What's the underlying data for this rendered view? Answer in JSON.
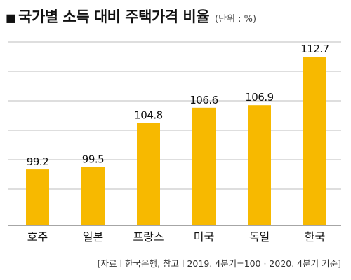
{
  "header": {
    "bullet": "■",
    "title": "국가별 소득 대비 주택가격 비율",
    "unit": "(단위 : %)"
  },
  "source": "[자료ㅣ한국은행, 참고ㅣ2019. 4분기=100 · 2020. 4분기 기준]",
  "chart_data": {
    "type": "bar",
    "title": "국가별 소득 대비 주택가격 비율",
    "unit": "(단위 : %)",
    "categories": [
      "호주",
      "일본",
      "프랑스",
      "미국",
      "독일",
      "한국"
    ],
    "values": [
      99.2,
      99.5,
      104.8,
      106.6,
      106.9,
      112.7
    ],
    "value_labels": [
      "99.2",
      "99.5",
      "104.8",
      "106.6",
      "106.9",
      "112.7"
    ],
    "ylim": [
      92.5,
      114.8
    ],
    "grid": true,
    "bar_color": "#F7B900",
    "grid_color": "#BDBDBD"
  }
}
